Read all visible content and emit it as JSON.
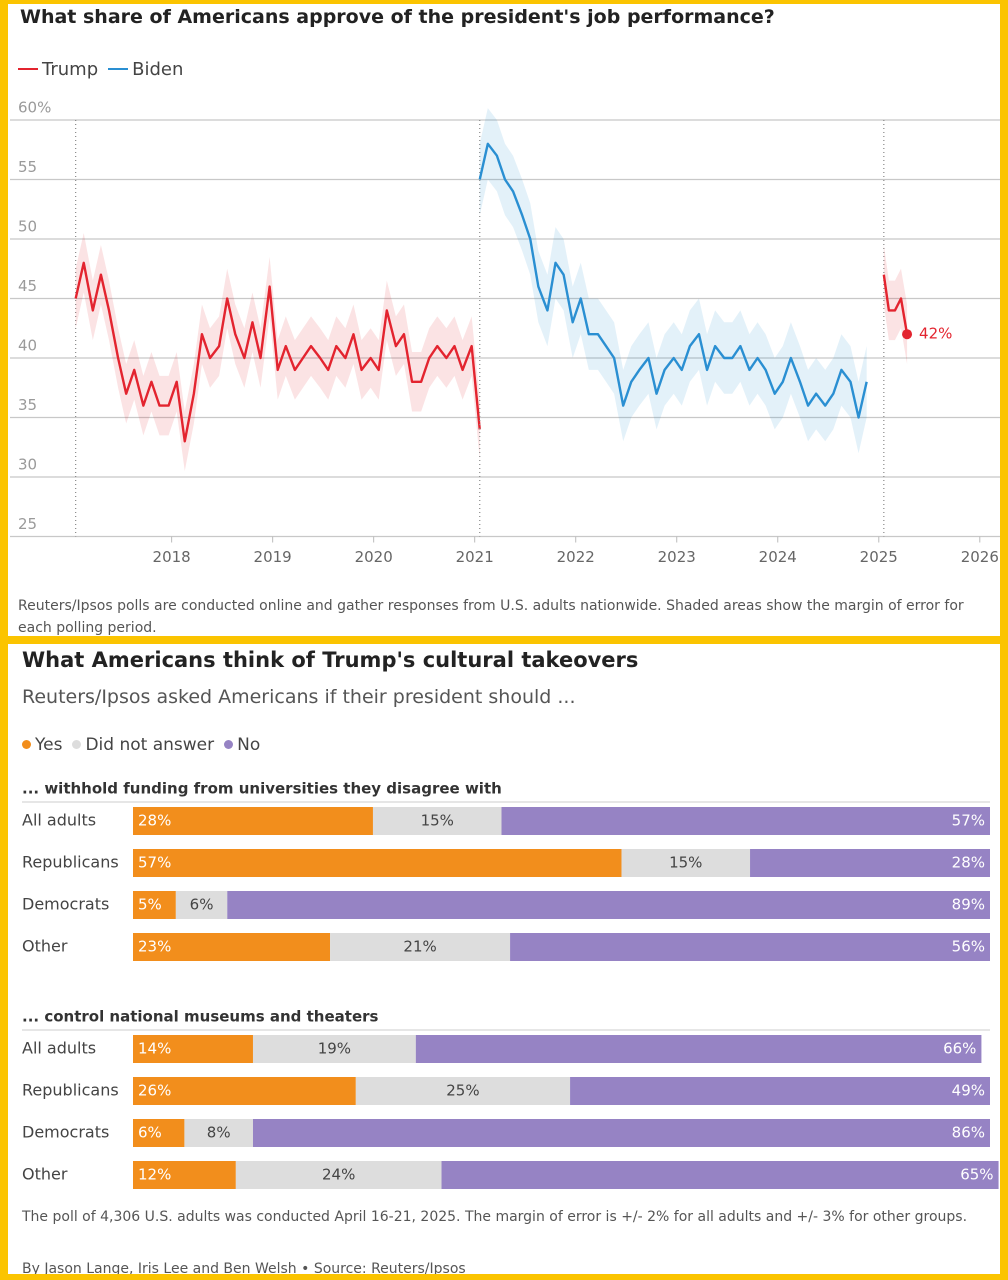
{
  "chart_data": [
    {
      "type": "line",
      "title": "What share of Americans approve of the president's job performance?",
      "xlim": [
        2016.4,
        2026.2
      ],
      "xticks": [
        2018,
        2019,
        2020,
        2021,
        2022,
        2023,
        2024,
        2025,
        2026
      ],
      "ylim": [
        25,
        60
      ],
      "yticks": [
        25,
        30,
        35,
        40,
        45,
        50,
        55,
        {
          "value": 60,
          "label": "60%"
        }
      ],
      "grid": true,
      "legend": "top-left",
      "series": [
        {
          "name": "Trump",
          "color": "#e3242f",
          "margin": 2.5,
          "x": [
            2017.05,
            2017.13,
            2017.22,
            2017.3,
            2017.38,
            2017.47,
            2017.55,
            2017.63,
            2017.72,
            2017.8,
            2017.88,
            2017.97,
            2018.05,
            2018.13,
            2018.22,
            2018.3,
            2018.38,
            2018.47,
            2018.55,
            2018.63,
            2018.72,
            2018.8,
            2018.88,
            2018.97,
            2019.05,
            2019.13,
            2019.22,
            2019.3,
            2019.38,
            2019.47,
            2019.55,
            2019.63,
            2019.72,
            2019.8,
            2019.88,
            2019.97,
            2020.05,
            2020.13,
            2020.22,
            2020.3,
            2020.38,
            2020.47,
            2020.55,
            2020.63,
            2020.72,
            2020.8,
            2020.88,
            2020.97,
            2021.05,
            null,
            2025.05,
            2025.1,
            2025.16,
            2025.22,
            2025.28
          ],
          "values": [
            45,
            48,
            44,
            47,
            44,
            40,
            37,
            39,
            36,
            38,
            36,
            36,
            38,
            33,
            37,
            42,
            40,
            41,
            45,
            42,
            40,
            43,
            40,
            46,
            39,
            41,
            39,
            40,
            41,
            40,
            39,
            41,
            40,
            42,
            39,
            40,
            39,
            44,
            41,
            42,
            38,
            38,
            40,
            41,
            40,
            41,
            39,
            41,
            34,
            null,
            47,
            44,
            44,
            45,
            42
          ],
          "value_labels": [
            null,
            null,
            null,
            null,
            null,
            null,
            null,
            null,
            null,
            null,
            null,
            null,
            null,
            null,
            null,
            null,
            null,
            null,
            null,
            null,
            null,
            null,
            null,
            null,
            null,
            null,
            null,
            null,
            null,
            null,
            null,
            null,
            null,
            null,
            null,
            null,
            null,
            null,
            null,
            null,
            null,
            null,
            null,
            null,
            null,
            null,
            null,
            null,
            null,
            null,
            null,
            null,
            null,
            null,
            "42%"
          ]
        },
        {
          "name": "Biden",
          "color": "#2a8fd2",
          "margin": 3,
          "x": [
            2021.05,
            2021.13,
            2021.22,
            2021.3,
            2021.38,
            2021.47,
            2021.55,
            2021.63,
            2021.72,
            2021.8,
            2021.88,
            2021.97,
            2022.05,
            2022.13,
            2022.22,
            2022.3,
            2022.38,
            2022.47,
            2022.55,
            2022.63,
            2022.72,
            2022.8,
            2022.88,
            2022.97,
            2023.05,
            2023.13,
            2023.22,
            2023.3,
            2023.38,
            2023.47,
            2023.55,
            2023.63,
            2023.72,
            2023.8,
            2023.88,
            2023.97,
            2024.05,
            2024.13,
            2024.22,
            2024.3,
            2024.38,
            2024.47,
            2024.55,
            2024.63,
            2024.72,
            2024.8,
            2024.88
          ],
          "values": [
            55,
            58,
            57,
            55,
            54,
            52,
            50,
            46,
            44,
            48,
            47,
            43,
            45,
            42,
            42,
            41,
            40,
            36,
            38,
            39,
            40,
            37,
            39,
            40,
            39,
            41,
            42,
            39,
            41,
            40,
            40,
            41,
            39,
            40,
            39,
            37,
            38,
            40,
            38,
            36,
            37,
            36,
            37,
            39,
            38,
            35,
            38
          ]
        }
      ],
      "note": "Reuters/Ipsos polls are conducted online and gather responses from U.S. adults nationwide. Shaded areas show the margin of error for each polling period."
    },
    {
      "type": "bar",
      "orientation": "horizontal",
      "stacked": true,
      "title": "What Americans think of Trump's cultural takeovers",
      "subtitle": "Reuters/Ipsos asked Americans if their president should ...",
      "xlim": [
        0,
        100
      ],
      "legend": [
        {
          "name": "Yes",
          "color": "#f28e1c"
        },
        {
          "name": "Did not answer",
          "color": "#dddddd"
        },
        {
          "name": "No",
          "color": "#9683c4"
        }
      ],
      "panels": [
        {
          "title": "... withhold funding from universities they disagree with",
          "categories": [
            "All adults",
            "Republicans",
            "Democrats",
            "Other"
          ],
          "series": [
            {
              "values": [
                28,
                57,
                5,
                23
              ],
              "value_labels": [
                "28%",
                "57%",
                "5%",
                "23%"
              ]
            },
            {
              "values": [
                15,
                15,
                6,
                21
              ],
              "value_labels": [
                "15%",
                "15%",
                "6%",
                "21%"
              ]
            },
            {
              "values": [
                57,
                28,
                89,
                56
              ],
              "value_labels": [
                "57%",
                "28%",
                "89%",
                "56%"
              ]
            }
          ]
        },
        {
          "title": "... control national museums and theaters",
          "categories": [
            "All adults",
            "Republicans",
            "Democrats",
            "Other"
          ],
          "series": [
            {
              "values": [
                14,
                26,
                6,
                12
              ],
              "value_labels": [
                "14%",
                "26%",
                "6%",
                "12%"
              ]
            },
            {
              "values": [
                19,
                25,
                8,
                24
              ],
              "value_labels": [
                "19%",
                "25%",
                "8%",
                "24%"
              ]
            },
            {
              "values": [
                66,
                49,
                86,
                65
              ],
              "value_labels": [
                "66%",
                "49%",
                "86%",
                "65%"
              ]
            }
          ]
        }
      ],
      "note": "The poll of 4,306 U.S. adults was conducted April 16-21, 2025. The margin of error is +/- 2% for all adults and +/- 3% for other groups.",
      "byline": "By Jason Lange, Iris Lee and Ben Welsh • Source: Reuters/Ipsos"
    }
  ]
}
